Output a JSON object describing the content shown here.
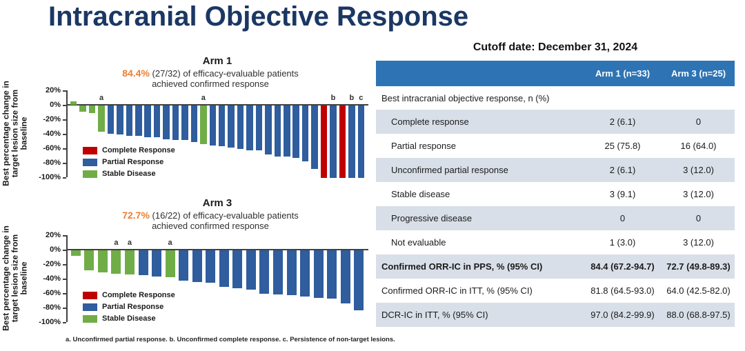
{
  "page": {
    "title": "Intracranial Objective Response",
    "footnote": "a. Unconfirmed partial response. b. Unconfirmed complete response. c. Persistence of non-target lesions."
  },
  "colors": {
    "title_navy": "#1B3764",
    "accent_orange": "#ED7D31",
    "bar_blue": "#2F5D9D",
    "bar_red": "#C00000",
    "bar_green": "#70AD47",
    "table_header_blue": "#2E74B5",
    "table_row_gray": "#D9DFE8",
    "axis_dark": "#404040"
  },
  "chart_data": [
    {
      "type": "bar",
      "variant": "waterfall",
      "title": "Arm 1",
      "highlight": "84.4%",
      "subtitle_line1": "(27/32) of efficacy-evaluable patients",
      "subtitle_line2": "achieved confirmed response",
      "ylabel": "Best percentage change in\ntarget lesion size from\nbaseline",
      "ylim": [
        -100,
        20
      ],
      "yticks": [
        20,
        0,
        -20,
        -40,
        -60,
        -80,
        -100
      ],
      "ytick_labels": [
        "20%",
        "0%",
        "-20%",
        "-40%",
        "-60%",
        "-80%",
        "-100%"
      ],
      "grid": false,
      "legend_position": "inside-left",
      "legend": [
        {
          "label": "Complete Response",
          "category": "complete",
          "color_key": "bar_red"
        },
        {
          "label": "Partial Response",
          "category": "partial",
          "color_key": "bar_blue"
        },
        {
          "label": "Stable Disease",
          "category": "stable",
          "color_key": "bar_green"
        }
      ],
      "bars": [
        {
          "value": 5,
          "category": "stable"
        },
        {
          "value": -9,
          "category": "stable"
        },
        {
          "value": -10,
          "category": "stable"
        },
        {
          "value": -36,
          "category": "stable",
          "note": "a"
        },
        {
          "value": -39,
          "category": "partial"
        },
        {
          "value": -40,
          "category": "partial"
        },
        {
          "value": -42,
          "category": "partial"
        },
        {
          "value": -42,
          "category": "partial"
        },
        {
          "value": -44,
          "category": "partial"
        },
        {
          "value": -44,
          "category": "partial"
        },
        {
          "value": -47,
          "category": "partial"
        },
        {
          "value": -48,
          "category": "partial"
        },
        {
          "value": -48,
          "category": "partial"
        },
        {
          "value": -50,
          "category": "partial"
        },
        {
          "value": -53,
          "category": "stable",
          "note": "a"
        },
        {
          "value": -55,
          "category": "partial"
        },
        {
          "value": -56,
          "category": "partial"
        },
        {
          "value": -58,
          "category": "partial"
        },
        {
          "value": -60,
          "category": "partial"
        },
        {
          "value": -62,
          "category": "partial"
        },
        {
          "value": -62,
          "category": "partial"
        },
        {
          "value": -68,
          "category": "partial"
        },
        {
          "value": -70,
          "category": "partial"
        },
        {
          "value": -70,
          "category": "partial"
        },
        {
          "value": -72,
          "category": "partial"
        },
        {
          "value": -77,
          "category": "partial"
        },
        {
          "value": -88,
          "category": "partial"
        },
        {
          "value": -100,
          "category": "complete"
        },
        {
          "value": -100,
          "category": "partial",
          "note": "b"
        },
        {
          "value": -100,
          "category": "complete"
        },
        {
          "value": -100,
          "category": "partial",
          "note": "b"
        },
        {
          "value": -100,
          "category": "partial",
          "note": "c"
        }
      ]
    },
    {
      "type": "bar",
      "variant": "waterfall",
      "title": "Arm 3",
      "highlight": "72.7%",
      "subtitle_line1": "(16/22) of efficacy-evaluable patients",
      "subtitle_line2": "achieved confirmed response",
      "ylabel": "Best percentage change in\ntarget lesion size from\nbaseline",
      "ylim": [
        -100,
        20
      ],
      "yticks": [
        20,
        0,
        -20,
        -40,
        -60,
        -80,
        -100
      ],
      "ytick_labels": [
        "20%",
        "0%",
        "-20%",
        "-40%",
        "-60%",
        "-80%",
        "-100%"
      ],
      "grid": false,
      "legend_position": "inside-left",
      "legend": [
        {
          "label": "Complete Response",
          "category": "complete",
          "color_key": "bar_red"
        },
        {
          "label": "Partial Response",
          "category": "partial",
          "color_key": "bar_blue"
        },
        {
          "label": "Stable Disease",
          "category": "stable",
          "color_key": "bar_green"
        }
      ],
      "bars": [
        {
          "value": -8,
          "category": "stable"
        },
        {
          "value": -28,
          "category": "stable"
        },
        {
          "value": -30,
          "category": "stable"
        },
        {
          "value": -32,
          "category": "stable",
          "note": "a"
        },
        {
          "value": -33,
          "category": "stable",
          "note": "a"
        },
        {
          "value": -34,
          "category": "partial"
        },
        {
          "value": -36,
          "category": "partial"
        },
        {
          "value": -37,
          "category": "stable",
          "note": "a"
        },
        {
          "value": -42,
          "category": "partial"
        },
        {
          "value": -44,
          "category": "partial"
        },
        {
          "value": -45,
          "category": "partial"
        },
        {
          "value": -50,
          "category": "partial"
        },
        {
          "value": -52,
          "category": "partial"
        },
        {
          "value": -54,
          "category": "partial"
        },
        {
          "value": -60,
          "category": "partial"
        },
        {
          "value": -61,
          "category": "partial"
        },
        {
          "value": -62,
          "category": "partial"
        },
        {
          "value": -64,
          "category": "partial"
        },
        {
          "value": -66,
          "category": "partial"
        },
        {
          "value": -67,
          "category": "partial"
        },
        {
          "value": -73,
          "category": "partial"
        },
        {
          "value": -83,
          "category": "partial"
        }
      ]
    },
    {
      "type": "table",
      "title": "Cutoff date: December 31, 2024",
      "columns": [
        "",
        "Arm 1 (n=33)",
        "Arm 3 (n=25)"
      ],
      "rows": [
        {
          "label": "Best intracranial objective response, n (%)",
          "arm1": "",
          "arm3": "",
          "bg": "white",
          "section": true,
          "indent": false,
          "bold": false
        },
        {
          "label": "Complete response",
          "arm1": "2 (6.1)",
          "arm3": "0",
          "bg": "gray",
          "section": false,
          "indent": true,
          "bold": false
        },
        {
          "label": "Partial response",
          "arm1": "25 (75.8)",
          "arm3": "16 (64.0)",
          "bg": "white",
          "section": false,
          "indent": true,
          "bold": false
        },
        {
          "label": "Unconfirmed partial response",
          "arm1": "2 (6.1)",
          "arm3": "3 (12.0)",
          "bg": "gray",
          "section": false,
          "indent": true,
          "bold": false
        },
        {
          "label": "Stable disease",
          "arm1": "3 (9.1)",
          "arm3": "3 (12.0)",
          "bg": "white",
          "section": false,
          "indent": true,
          "bold": false
        },
        {
          "label": "Progressive disease",
          "arm1": "0",
          "arm3": "0",
          "bg": "gray",
          "section": false,
          "indent": true,
          "bold": false
        },
        {
          "label": "Not evaluable",
          "arm1": "1 (3.0)",
          "arm3": "3 (12.0)",
          "bg": "white",
          "section": false,
          "indent": true,
          "bold": false
        },
        {
          "label": "Confirmed ORR-IC in PPS, % (95% CI)",
          "arm1": "84.4 (67.2-94.7)",
          "arm3": "72.7 (49.8-89.3)",
          "bg": "gray",
          "section": false,
          "indent": false,
          "bold": true
        },
        {
          "label": "Confirmed ORR-IC in ITT, % (95% CI)",
          "arm1": "81.8 (64.5-93.0)",
          "arm3": "64.0 (42.5-82.0)",
          "bg": "white",
          "section": false,
          "indent": false,
          "bold": false
        },
        {
          "label": "DCR-IC in ITT, % (95% CI)",
          "arm1": "97.0 (84.2-99.9)",
          "arm3": "88.0 (68.8-97.5)",
          "bg": "gray",
          "section": false,
          "indent": false,
          "bold": false
        }
      ]
    }
  ]
}
